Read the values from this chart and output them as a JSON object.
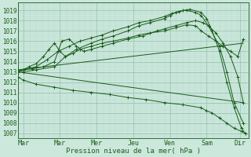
{
  "title": "",
  "xlabel": "Pression niveau de la mer( hPa )",
  "bg_color": "#cce8dd",
  "plot_bg_color": "#cce8dd",
  "grid_major_color": "#99c4b0",
  "grid_minor_color": "#b8d9cc",
  "line_color": "#1a5c1a",
  "ylim": [
    1006.5,
    1019.8
  ],
  "ymin": 1007,
  "ymax": 1019,
  "yticks": [
    1007,
    1008,
    1009,
    1010,
    1011,
    1012,
    1013,
    1014,
    1015,
    1016,
    1017,
    1018,
    1019
  ],
  "xlim": [
    0,
    6.3
  ],
  "xtick_positions": [
    0.15,
    1.15,
    2.15,
    3.15,
    4.15,
    5.15,
    6.05
  ],
  "xtick_labels": [
    "Mar",
    "Mar",
    "Mer",
    "Jeu",
    "Ven",
    "Sam",
    "Dir"
  ],
  "lines": [
    {
      "x": [
        0.0,
        0.15,
        0.5,
        1.0,
        1.3,
        1.6,
        2.0,
        2.3,
        2.6,
        3.0,
        3.3,
        3.6,
        4.0,
        4.15,
        4.3,
        4.5,
        4.7,
        5.0,
        5.15,
        5.3,
        5.5,
        5.7,
        5.9,
        6.1,
        6.2
      ],
      "y": [
        1013.2,
        1013.0,
        1013.2,
        1013.5,
        1014.5,
        1015.2,
        1015.8,
        1016.2,
        1016.5,
        1017.0,
        1017.5,
        1017.8,
        1018.2,
        1018.5,
        1018.8,
        1019.0,
        1019.1,
        1018.8,
        1018.2,
        1017.0,
        1015.0,
        1012.0,
        1009.5,
        1007.5,
        1007.0
      ],
      "marker": "+"
    },
    {
      "x": [
        0.0,
        0.15,
        0.5,
        0.8,
        1.1,
        1.4,
        1.7,
        2.0,
        2.3,
        2.6,
        3.0,
        3.3,
        3.6,
        4.0,
        4.2,
        4.4,
        4.6,
        4.85,
        5.0,
        5.2,
        5.5,
        5.7,
        5.9,
        6.15
      ],
      "y": [
        1013.0,
        1013.2,
        1013.5,
        1014.2,
        1015.0,
        1015.5,
        1016.0,
        1016.3,
        1016.6,
        1017.0,
        1017.4,
        1017.8,
        1018.0,
        1018.4,
        1018.7,
        1018.9,
        1019.0,
        1018.8,
        1018.5,
        1017.5,
        1015.5,
        1013.0,
        1010.0,
        1008.0
      ],
      "marker": "+"
    },
    {
      "x": [
        0.0,
        0.15,
        0.4,
        0.7,
        1.0,
        1.1,
        1.2,
        1.4,
        1.6,
        1.8,
        2.0,
        2.3,
        2.6,
        3.0,
        3.4,
        3.8,
        4.0,
        4.3,
        4.6,
        4.85,
        5.05,
        5.2,
        5.4,
        5.6,
        5.8,
        6.0,
        6.15
      ],
      "y": [
        1013.0,
        1013.2,
        1013.3,
        1013.5,
        1014.0,
        1015.0,
        1016.0,
        1016.2,
        1015.5,
        1015.0,
        1015.2,
        1015.5,
        1015.8,
        1016.2,
        1016.5,
        1017.0,
        1017.2,
        1017.5,
        1017.8,
        1018.0,
        1017.8,
        1017.5,
        1016.8,
        1015.8,
        1014.5,
        1012.5,
        1010.0
      ],
      "marker": "+"
    },
    {
      "x": [
        0.0,
        0.15,
        0.3,
        0.5,
        0.7,
        0.85,
        1.0,
        1.15,
        1.3,
        1.5,
        1.7,
        2.0,
        2.3,
        2.6,
        3.0,
        3.3,
        3.6,
        4.0,
        4.3,
        4.6,
        4.85,
        5.0,
        5.2,
        5.4,
        5.6,
        5.8,
        6.0,
        6.15
      ],
      "y": [
        1013.0,
        1013.2,
        1013.5,
        1013.8,
        1014.5,
        1015.2,
        1015.8,
        1015.0,
        1014.5,
        1014.8,
        1015.2,
        1015.5,
        1015.8,
        1016.0,
        1016.3,
        1016.6,
        1016.8,
        1017.0,
        1017.3,
        1017.6,
        1017.5,
        1017.0,
        1016.5,
        1016.0,
        1015.5,
        1015.0,
        1014.5,
        1016.2
      ],
      "marker": "+"
    },
    {
      "x": [
        0.0,
        6.15
      ],
      "y": [
        1013.2,
        1015.8
      ],
      "marker": null
    },
    {
      "x": [
        0.0,
        6.15
      ],
      "y": [
        1013.0,
        1010.0
      ],
      "marker": null
    },
    {
      "x": [
        0.0,
        0.15,
        0.5,
        1.0,
        1.5,
        2.0,
        2.5,
        3.0,
        3.5,
        4.0,
        4.5,
        5.0,
        5.15,
        5.3,
        5.5,
        5.7,
        5.9,
        6.1,
        6.2
      ],
      "y": [
        1012.5,
        1012.2,
        1011.8,
        1011.5,
        1011.2,
        1011.0,
        1010.8,
        1010.5,
        1010.3,
        1010.0,
        1009.8,
        1009.5,
        1009.2,
        1009.0,
        1008.5,
        1008.0,
        1007.5,
        1007.2,
        1007.0
      ],
      "marker": "+"
    }
  ]
}
